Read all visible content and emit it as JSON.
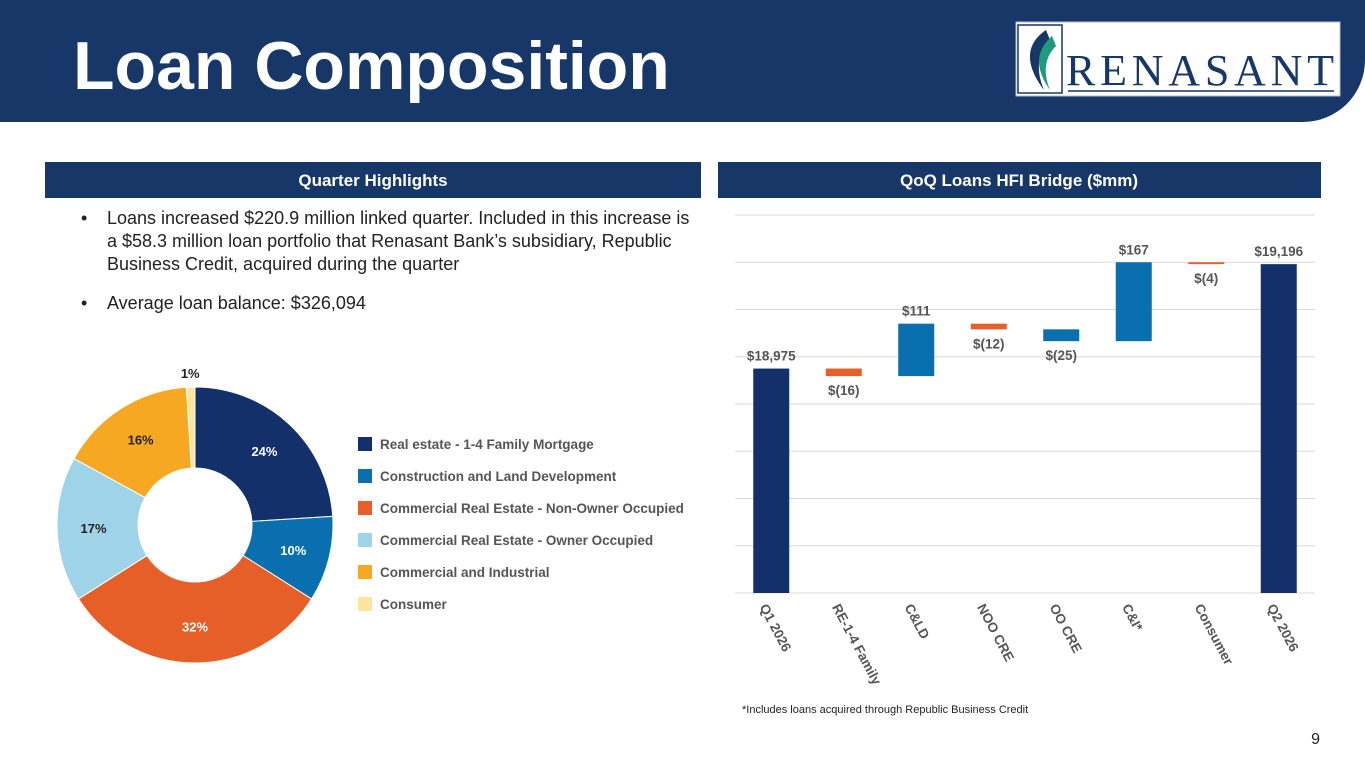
{
  "header": {
    "title": "Loan Composition",
    "logo": "RENASANT"
  },
  "sections": [
    "Quarter Highlights",
    "QoQ Loans HFI Bridge ($mm)"
  ],
  "bullets": [
    "Loans increased $220.9 million linked quarter. Included in this increase is a $58.3 million loan portfolio that Renasant Bank’s subsidiary, Republic Business Credit, acquired during the quarter",
    "Average loan balance: $326,094"
  ],
  "chart_data": [
    {
      "type": "donut",
      "categories": [
        "Real estate - 1-4 Family Mortgage",
        "Construction and Land Development",
        "Commercial Real Estate - Non-Owner Occupied",
        "Commercial Real Estate - Owner Occupied",
        "Commercial and Industrial",
        "Consumer"
      ],
      "values": [
        24,
        10,
        32,
        17,
        16,
        1
      ],
      "value_labels": [
        "24%",
        "10%",
        "32%",
        "17%",
        "16%",
        "1%"
      ],
      "colors": [
        "#14306b",
        "#0a6fae",
        "#e65f28",
        "#9fd4e8",
        "#f6a823",
        "#fde59c"
      ],
      "legend": "right"
    },
    {
      "type": "waterfall",
      "categories": [
        "Q1 2026",
        "RE-1-4 Family",
        "C&LD",
        "NOO CRE",
        "OO CRE",
        "C&I*",
        "Consumer",
        "Q2 2026"
      ],
      "values": [
        18975,
        -16,
        111,
        -12,
        -25,
        167,
        -4,
        19196
      ],
      "value_labels": [
        "$18,975",
        "$(16)",
        "$111",
        "$(12)",
        "$(25)",
        "$167",
        "$(4)",
        "$19,196"
      ],
      "measures": [
        "total",
        "relative",
        "relative",
        "relative",
        "relative",
        "relative",
        "relative",
        "total"
      ],
      "colors": [
        "#14306b",
        "#e65f28",
        "#0a6fae",
        "#e65f28",
        "#0a6fae",
        "#0a6fae",
        "#e65f28",
        "#14306b"
      ],
      "ylim": [
        18500,
        19300
      ],
      "yticks": [
        18500,
        18600,
        18700,
        18800,
        18900,
        19000,
        19100,
        19200,
        19300
      ],
      "show_ytick_labels": false,
      "grid": true,
      "footnote": "*Includes loans acquired through Republic Business Credit"
    }
  ],
  "page_number": "9"
}
